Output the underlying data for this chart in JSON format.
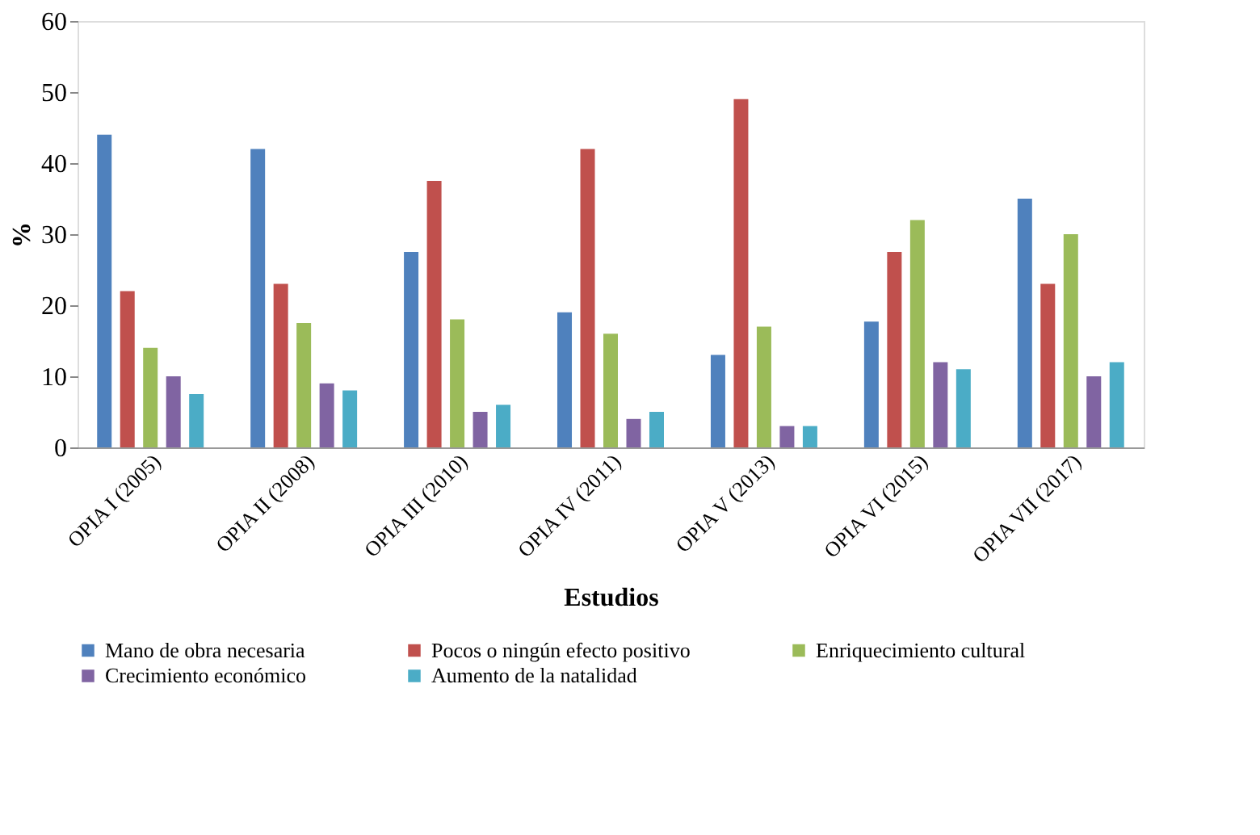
{
  "chart_data": {
    "type": "bar",
    "xlabel": "Estudios",
    "ylabel": "%",
    "categories": [
      "OPIA I (2005)",
      "OPIA II (2008)",
      "OPIA III (2010)",
      "OPIA IV (2011)",
      "OPIA V (2013)",
      "OPIA VI (2015)",
      "OPIA VII (2017)"
    ],
    "series": [
      {
        "name": "Mano de obra necesaria",
        "color": "#4f81bd",
        "values": [
          44,
          42,
          27.5,
          19,
          13,
          17.7,
          35
        ]
      },
      {
        "name": "Pocos o ningún efecto positivo",
        "color": "#c0504d",
        "values": [
          22,
          23,
          37.5,
          42,
          49,
          27.5,
          23
        ]
      },
      {
        "name": "Enriquecimiento cultural",
        "color": "#9bbb59",
        "values": [
          14,
          17.5,
          18,
          16,
          17,
          32,
          30
        ]
      },
      {
        "name": "Crecimiento económico",
        "color": "#8064a2",
        "values": [
          10,
          9,
          5,
          4,
          3,
          12,
          10
        ]
      },
      {
        "name": "Aumento de la natalidad",
        "color": "#4bacc6",
        "values": [
          7.5,
          8,
          6,
          5,
          3,
          11,
          12
        ]
      }
    ],
    "ylim": [
      0,
      60
    ],
    "yticks": [
      0,
      10,
      20,
      30,
      40,
      50,
      60
    ],
    "grid": false,
    "legend": "bottom"
  }
}
